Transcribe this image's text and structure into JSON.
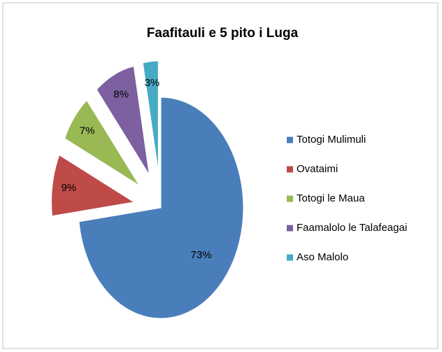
{
  "chart_data": {
    "type": "pie",
    "title": "Faafitauli e 5 pito i Luga",
    "categories": [
      "Totogi Mulimuli",
      "Ovataimi",
      "Totogi le Maua",
      "Faamalolo le Talafeagai",
      "Aso Malolo"
    ],
    "values": [
      73,
      9,
      7,
      8,
      3
    ],
    "value_labels": [
      "73%",
      "9%",
      "7%",
      "8%",
      "3%"
    ],
    "colors": [
      "#4a7ebb",
      "#be4b48",
      "#98b954",
      "#7d60a0",
      "#46aac5"
    ],
    "exploded": [
      false,
      true,
      true,
      true,
      true
    ],
    "legend": "right"
  }
}
